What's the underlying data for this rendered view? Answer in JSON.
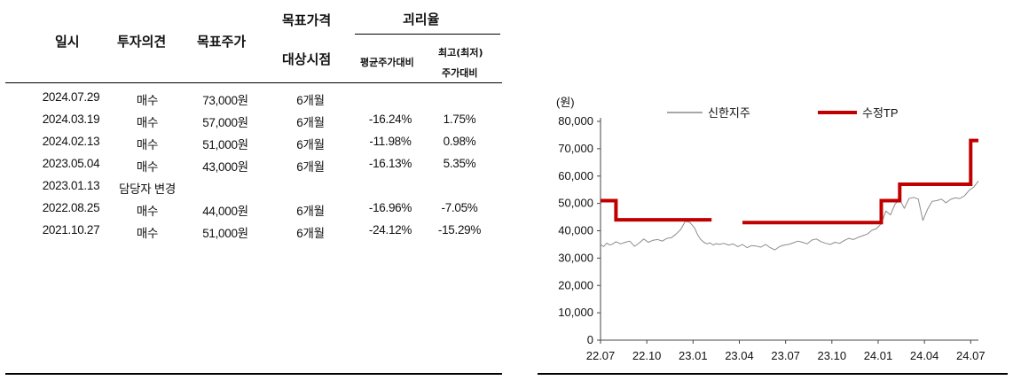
{
  "table": {
    "headers": {
      "date": "일시",
      "opinion": "투자의견",
      "target": "목표주가",
      "horizon_line1": "목표가격",
      "horizon_line2": "대상시점",
      "disparity": "괴리율",
      "avg": "평균주가대비",
      "maxmin_line1": "최고(최저)",
      "maxmin_line2": "주가대비"
    },
    "rows": [
      {
        "date": "2024.07.29",
        "opinion": "매수",
        "target": "73,000원",
        "horizon": "6개월",
        "avg": "",
        "maxmin": ""
      },
      {
        "date": "2024.03.19",
        "opinion": "매수",
        "target": "57,000원",
        "horizon": "6개월",
        "avg": "-16.24%",
        "maxmin": "1.75%"
      },
      {
        "date": "2024.02.13",
        "opinion": "매수",
        "target": "51,000원",
        "horizon": "6개월",
        "avg": "-11.98%",
        "maxmin": "0.98%"
      },
      {
        "date": "2023.05.04",
        "opinion": "매수",
        "target": "43,000원",
        "horizon": "6개월",
        "avg": "-16.13%",
        "maxmin": "5.35%"
      },
      {
        "date": "2023.01.13",
        "opinion": "담당자 변경",
        "target": "",
        "horizon": "",
        "avg": "",
        "maxmin": ""
      },
      {
        "date": "2022.08.25",
        "opinion": "매수",
        "target": "44,000원",
        "horizon": "6개월",
        "avg": "-16.96%",
        "maxmin": "-7.05%"
      },
      {
        "date": "2021.10.27",
        "opinion": "매수",
        "target": "51,000원",
        "horizon": "6개월",
        "avg": "-24.12%",
        "maxmin": "-15.29%"
      }
    ]
  },
  "chart_data": {
    "type": "line",
    "ylabel": "(원)",
    "ylim": [
      0,
      80000
    ],
    "yticks": [
      "0",
      "10,000",
      "20,000",
      "30,000",
      "40,000",
      "50,000",
      "60,000",
      "70,000",
      "80,000"
    ],
    "yticks_values": [
      0,
      10000,
      20000,
      30000,
      40000,
      50000,
      60000,
      70000,
      80000
    ],
    "xticks": [
      "22.07",
      "22.10",
      "23.01",
      "23.04",
      "23.07",
      "23.10",
      "24.01",
      "24.04",
      "24.07"
    ],
    "legend_position": "top",
    "colors": {
      "price": "#8c8c8c",
      "target": "#c00000"
    },
    "series": [
      {
        "name": "신한지주",
        "x": [
          0,
          0.2,
          0.4,
          0.6,
          0.8,
          1.0,
          1.3,
          1.6,
          1.9,
          2.2,
          2.5,
          2.8,
          3.1,
          3.4,
          3.7,
          4.0,
          4.3,
          4.6,
          4.9,
          5.2,
          5.5,
          5.8,
          6.1,
          6.3,
          6.5,
          6.7,
          6.9,
          7.1,
          7.3,
          7.5,
          7.7,
          8.0,
          8.3,
          8.6,
          8.9,
          9.2,
          9.5,
          9.8,
          10.1,
          10.4,
          10.7,
          11.0,
          11.3,
          11.6,
          11.9,
          12.2,
          12.5,
          12.8,
          13.1,
          13.4,
          13.7,
          14.0,
          14.3,
          14.6,
          14.9,
          15.2,
          15.5,
          15.8,
          16.1,
          16.4,
          16.7,
          17.0,
          17.3,
          17.6,
          17.9,
          18.2,
          18.5,
          18.8,
          19.1,
          19.4,
          19.7,
          20.0,
          20.3,
          20.6,
          20.9,
          21.2,
          21.5,
          21.8,
          22.1,
          22.4,
          22.7,
          23.0,
          23.3,
          23.6,
          23.9,
          24.2,
          24.5
        ],
        "values": [
          35000,
          34200,
          35500,
          34800,
          35200,
          36000,
          35200,
          35800,
          36200,
          34300,
          35500,
          37000,
          35800,
          36500,
          36800,
          36200,
          37200,
          37500,
          38800,
          40500,
          43500,
          43000,
          41000,
          38500,
          36800,
          35800,
          35200,
          35600,
          34800,
          35300,
          35000,
          35400,
          34800,
          35200,
          34200,
          35000,
          33800,
          34600,
          34400,
          34000,
          35000,
          33800,
          33000,
          34200,
          34800,
          35000,
          35600,
          36200,
          35800,
          35200,
          36600,
          37000,
          36000,
          35400,
          35000,
          35800,
          35400,
          36400,
          37200,
          36800,
          37600,
          38200,
          38800,
          40200,
          40800,
          42600,
          47200,
          45800,
          49800,
          51400,
          48200,
          51800,
          52200,
          51600,
          43800,
          47800,
          50800,
          51000,
          51600,
          50200,
          51500,
          52000,
          51800,
          52800,
          54800,
          56000,
          58200
        ]
      },
      {
        "name": "수정TP",
        "x": [
          0,
          1.0,
          1.0,
          7.2,
          null,
          9.2,
          18.2,
          18.2,
          19.4,
          19.4,
          24.0,
          24.0,
          24.5
        ],
        "values": [
          51000,
          51000,
          44000,
          44000,
          null,
          43000,
          43000,
          51000,
          51000,
          57000,
          57000,
          73000,
          73000
        ]
      }
    ]
  }
}
